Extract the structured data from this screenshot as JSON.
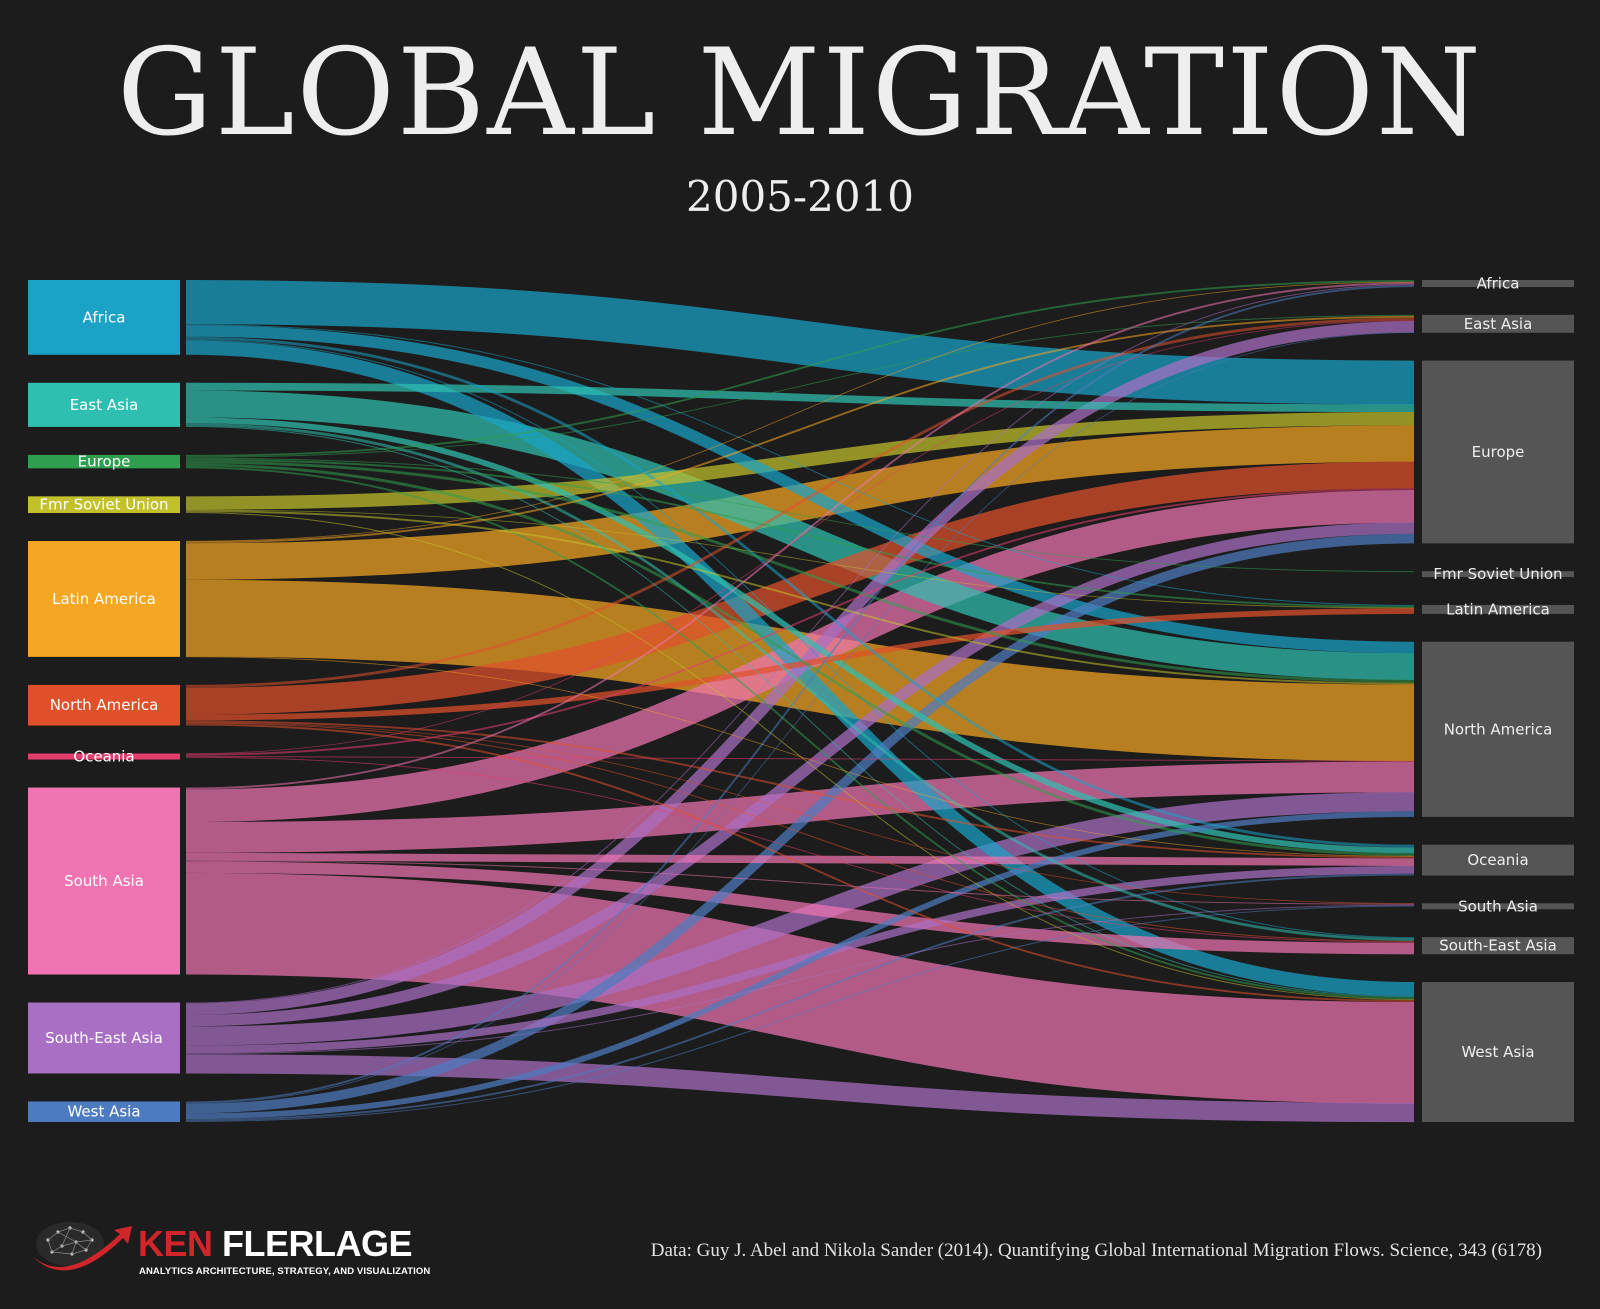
{
  "title": "GLOBAL MIGRATION",
  "subtitle": "2005-2010",
  "credit": "Data: Guy J. Abel and Nikola Sander (2014). Quantifying Global International Migration Flows. Science, 343 (6178)",
  "logo": {
    "first": "KEN",
    "last": "FLERLAGE",
    "tagline": "ANALYTICS ARCHITECTURE, STRATEGY, AND VISUALIZATION"
  },
  "chart_data": {
    "type": "sankey",
    "title": "GLOBAL MIGRATION",
    "subtitle": "2005-2010",
    "sources": [
      {
        "name": "Africa",
        "color": "#1aa3c7"
      },
      {
        "name": "East Asia",
        "color": "#2fbfb0"
      },
      {
        "name": "Europe",
        "color": "#2f9e4f"
      },
      {
        "name": "Fmr Soviet Union",
        "color": "#c2c12c"
      },
      {
        "name": "Latin America",
        "color": "#f5a623"
      },
      {
        "name": "North America",
        "color": "#e0512b"
      },
      {
        "name": "Oceania",
        "color": "#e33d6d"
      },
      {
        "name": "South Asia",
        "color": "#ef74b1"
      },
      {
        "name": "South-East Asia",
        "color": "#a96fc4"
      },
      {
        "name": "West Asia",
        "color": "#4d7bbf"
      }
    ],
    "targets": [
      "Africa",
      "East Asia",
      "Europe",
      "Fmr Soviet Union",
      "Latin America",
      "North America",
      "Oceania",
      "South Asia",
      "South-East Asia",
      "West Asia"
    ],
    "target_color": "#555555",
    "unit": "approx. millions of migrants (estimated from band widths)",
    "flows": [
      [
        "Africa",
        "Europe",
        2.3
      ],
      [
        "Africa",
        "North America",
        0.6
      ],
      [
        "Africa",
        "West Asia",
        0.75
      ],
      [
        "Africa",
        "Oceania",
        0.15
      ],
      [
        "Africa",
        "South-East Asia",
        0.05
      ],
      [
        "Africa",
        "Latin America",
        0.05
      ],
      [
        "East Asia",
        "Europe",
        0.4
      ],
      [
        "East Asia",
        "North America",
        1.4
      ],
      [
        "East Asia",
        "Oceania",
        0.3
      ],
      [
        "East Asia",
        "South-East Asia",
        0.15
      ],
      [
        "East Asia",
        "West Asia",
        0.05
      ],
      [
        "Europe",
        "Africa",
        0.1
      ],
      [
        "Europe",
        "East Asia",
        0.05
      ],
      [
        "Europe",
        "North America",
        0.15
      ],
      [
        "Europe",
        "Oceania",
        0.15
      ],
      [
        "Europe",
        "Latin America",
        0.1
      ],
      [
        "Europe",
        "West Asia",
        0.1
      ],
      [
        "Europe",
        "Fmr Soviet Union",
        0.05
      ],
      [
        "Fmr Soviet Union",
        "Europe",
        0.7
      ],
      [
        "Fmr Soviet Union",
        "North America",
        0.1
      ],
      [
        "Fmr Soviet Union",
        "West Asia",
        0.05
      ],
      [
        "Fmr Soviet Union",
        "Latin America",
        0.02
      ],
      [
        "Latin America",
        "Europe",
        1.9
      ],
      [
        "Latin America",
        "North America",
        4.0
      ],
      [
        "Latin America",
        "East Asia",
        0.1
      ],
      [
        "Latin America",
        "Oceania",
        0.02
      ],
      [
        "Latin America",
        "Africa",
        0.02
      ],
      [
        "North America",
        "Europe",
        1.4
      ],
      [
        "North America",
        "Latin America",
        0.3
      ],
      [
        "North America",
        "East Asia",
        0.15
      ],
      [
        "North America",
        "Oceania",
        0.1
      ],
      [
        "North America",
        "West Asia",
        0.1
      ],
      [
        "North America",
        "South Asia",
        0.02
      ],
      [
        "North America",
        "South-East Asia",
        0.05
      ],
      [
        "Oceania",
        "Europe",
        0.1
      ],
      [
        "Oceania",
        "North America",
        0.05
      ],
      [
        "Oceania",
        "South-East Asia",
        0.05
      ],
      [
        "Oceania",
        "East Asia",
        0.02
      ],
      [
        "South Asia",
        "Europe",
        1.7
      ],
      [
        "South Asia",
        "North America",
        1.6
      ],
      [
        "South Asia",
        "Oceania",
        0.4
      ],
      [
        "South Asia",
        "South-East Asia",
        0.6
      ],
      [
        "South Asia",
        "West Asia",
        5.3
      ],
      [
        "South Asia",
        "Africa",
        0.1
      ],
      [
        "South Asia",
        "South Asia",
        0.05
      ],
      [
        "South-East Asia",
        "Europe",
        0.6
      ],
      [
        "South-East Asia",
        "North America",
        1.0
      ],
      [
        "South-East Asia",
        "East Asia",
        0.6
      ],
      [
        "South-East Asia",
        "Oceania",
        0.4
      ],
      [
        "South-East Asia",
        "West Asia",
        1.0
      ],
      [
        "South-East Asia",
        "Africa",
        0.05
      ],
      [
        "South-East Asia",
        "South Asia",
        0.05
      ],
      [
        "West Asia",
        "Europe",
        0.5
      ],
      [
        "West Asia",
        "North America",
        0.3
      ],
      [
        "West Asia",
        "Africa",
        0.1
      ],
      [
        "West Asia",
        "Oceania",
        0.1
      ],
      [
        "West Asia",
        "South Asia",
        0.05
      ],
      [
        "West Asia",
        "East Asia",
        0.02
      ]
    ]
  }
}
